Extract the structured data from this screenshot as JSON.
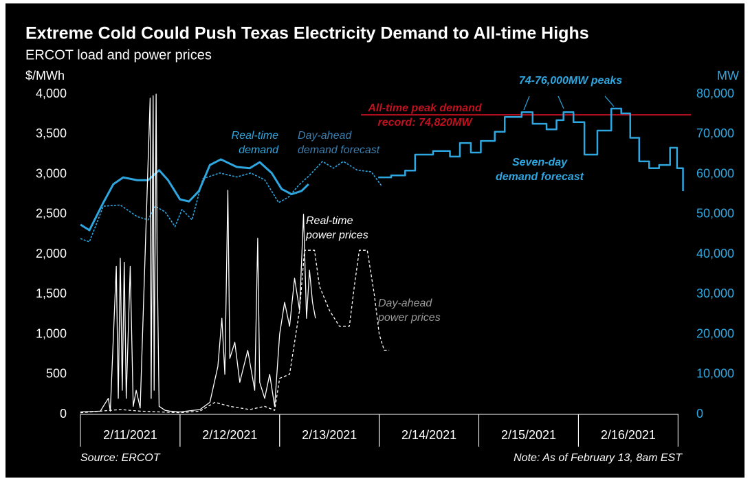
{
  "chart_data": {
    "type": "line",
    "title": "Extreme Cold Could Push Texas Electricity Demand to All-time Highs",
    "subtitle": "ERCOT load and power prices",
    "y_label": "$/MWh",
    "y2_label": "MW",
    "source": "Source: ERCOT",
    "note": "Note: As of February 13, 8am EST",
    "xlim": [
      0,
      6.06
    ],
    "xticks": [
      {
        "value": 0.5,
        "label": "2/11/2021"
      },
      {
        "value": 1.5,
        "label": "2/12/2021"
      },
      {
        "value": 2.5,
        "label": "2/13/2021"
      },
      {
        "value": 3.5,
        "label": "2/14/2021"
      },
      {
        "value": 4.5,
        "label": "2/15/2021"
      },
      {
        "value": 5.5,
        "label": "2/16/2021"
      }
    ],
    "ylim": [
      0,
      4000
    ],
    "yticks": [
      0,
      500,
      {
        "value": 1000,
        "label": "1,000"
      },
      {
        "value": 1500,
        "label": "1,500"
      },
      {
        "value": 2000,
        "label": "2,000"
      },
      {
        "value": 2500,
        "label": "2,500"
      },
      {
        "value": 3000,
        "label": "3,000"
      },
      {
        "value": 3500,
        "label": "3,500"
      },
      {
        "value": 4000,
        "label": "4,000"
      }
    ],
    "y2lim": [
      0,
      80000
    ],
    "y2ticks": [
      0,
      {
        "value": 10000,
        "label": "10,000"
      },
      {
        "value": 20000,
        "label": "20,000"
      },
      {
        "value": 30000,
        "label": "30,000"
      },
      {
        "value": 40000,
        "label": "40,000"
      },
      {
        "value": 50000,
        "label": "50,000"
      },
      {
        "value": 60000,
        "label": "60,000"
      },
      {
        "value": 70000,
        "label": "70,000"
      },
      {
        "value": 80000,
        "label": "80,000"
      }
    ],
    "reference_line": {
      "value": 74820,
      "axis": "y2",
      "color": "#c0111f"
    },
    "series": [
      {
        "axis": "y2",
        "style": "solid",
        "color": "#2ea6e0",
        "x": [
          0,
          0.09,
          0.23,
          0.33,
          0.43,
          0.57,
          0.68,
          0.79,
          0.88,
          1.0,
          1.09,
          1.19,
          1.3,
          1.41,
          1.57,
          1.7,
          1.8,
          1.92,
          2.02,
          2.12,
          2.22,
          2.29
        ],
        "values": [
          47400,
          46000,
          52900,
          57500,
          59200,
          58500,
          58500,
          61000,
          58500,
          53700,
          53200,
          55800,
          62300,
          63700,
          61800,
          61500,
          63000,
          60300,
          56300,
          55000,
          55800,
          57500
        ]
      },
      {
        "axis": "y2",
        "style": "dotted",
        "color": "#2ea6e0",
        "x": [
          0,
          0.09,
          0.23,
          0.4,
          0.57,
          0.68,
          0.75,
          0.85,
          0.95,
          1.02,
          1.12,
          1.23,
          1.4,
          1.57,
          1.71,
          1.85,
          1.99,
          2.09,
          2.19,
          2.3,
          2.43,
          2.54,
          2.64,
          2.78,
          2.92,
          3.02
        ],
        "values": [
          43900,
          43100,
          52000,
          52300,
          49400,
          48600,
          52000,
          50600,
          46900,
          51200,
          48600,
          58900,
          60300,
          59300,
          60300,
          58600,
          52900,
          54300,
          57200,
          59700,
          63200,
          61500,
          63200,
          61000,
          60600,
          57200
        ]
      },
      {
        "axis": "y2",
        "style": "step",
        "color": "#2ea6e0",
        "x": [
          2.99,
          3.12,
          3.26,
          3.36,
          3.54,
          3.71,
          3.81,
          3.92,
          4.02,
          4.16,
          4.26,
          4.43,
          4.54,
          4.68,
          4.78,
          4.85,
          4.95,
          5.06,
          5.19,
          5.33,
          5.43,
          5.52,
          5.61,
          5.71,
          5.81,
          5.92,
          5.99,
          6.05
        ],
        "values": [
          59200,
          59700,
          60900,
          64900,
          65800,
          64400,
          67800,
          65400,
          68300,
          70600,
          74300,
          75500,
          72600,
          71200,
          73500,
          75500,
          73000,
          64900,
          70900,
          76400,
          75200,
          69100,
          63200,
          61500,
          62300,
          66600,
          61500,
          55800
        ]
      },
      {
        "axis": "y",
        "style": "solid-thin",
        "color": "#ffffff",
        "x": [
          0,
          0.2,
          0.28,
          0.3,
          0.36,
          0.38,
          0.4,
          0.42,
          0.44,
          0.46,
          0.5,
          0.53,
          0.56,
          0.6,
          0.7,
          0.71,
          0.73,
          0.74,
          0.76,
          0.77,
          0.79,
          0.85,
          0.9,
          1.0,
          1.2,
          1.3,
          1.38,
          1.42,
          1.45,
          1.48,
          1.5,
          1.55,
          1.6,
          1.68,
          1.75,
          1.78,
          1.8,
          1.85,
          1.9,
          1.95,
          2.0,
          2.05,
          2.1,
          2.15,
          2.2,
          2.24,
          2.27,
          2.3,
          2.33,
          2.36
        ],
        "values": [
          30,
          40,
          200,
          40,
          1850,
          200,
          1950,
          300,
          1900,
          200,
          1850,
          100,
          300,
          80,
          3950,
          200,
          3980,
          300,
          4000,
          2000,
          100,
          50,
          40,
          30,
          60,
          150,
          600,
          1200,
          500,
          2800,
          700,
          900,
          400,
          800,
          300,
          2200,
          400,
          200,
          500,
          100,
          1000,
          1400,
          1100,
          1700,
          1300,
          2500,
          1200,
          1800,
          1400,
          1200
        ]
      },
      {
        "axis": "y",
        "style": "dashed",
        "color": "#ffffff",
        "x": [
          0,
          0.2,
          0.4,
          0.6,
          0.8,
          1.0,
          1.2,
          1.35,
          1.5,
          1.7,
          1.85,
          1.95,
          2.0,
          2.1,
          2.2,
          2.25,
          2.35,
          2.4,
          2.5,
          2.6,
          2.7,
          2.75,
          2.8,
          2.88,
          2.95,
          3.0,
          3.05,
          3.1
        ],
        "values": [
          20,
          40,
          60,
          40,
          30,
          20,
          40,
          150,
          100,
          60,
          100,
          50,
          450,
          500,
          1300,
          2050,
          2050,
          1600,
          1300,
          1100,
          1100,
          1600,
          2050,
          2050,
          1500,
          1000,
          800,
          800
        ]
      }
    ],
    "annotations": [
      {
        "lines": [
          "All-time peak demand",
          "record: 74,820MW"
        ],
        "color": "#c0111f"
      },
      {
        "lines": [
          "74-76,000MW peaks"
        ],
        "color": "#2ea6e0"
      },
      {
        "lines": [
          "Real-time",
          "demand"
        ],
        "color": "#2ea6e0"
      },
      {
        "lines": [
          "Day-ahead",
          "demand forecast"
        ],
        "color": "#3a7fb0"
      },
      {
        "lines": [
          "Seven-day",
          "demand forecast"
        ],
        "color": "#2ea6e0"
      },
      {
        "lines": [
          "Real-time",
          "power prices"
        ],
        "color": "#ffffff"
      },
      {
        "lines": [
          "Day-ahead",
          "power prices"
        ],
        "color": "#9a9a9a"
      }
    ]
  }
}
